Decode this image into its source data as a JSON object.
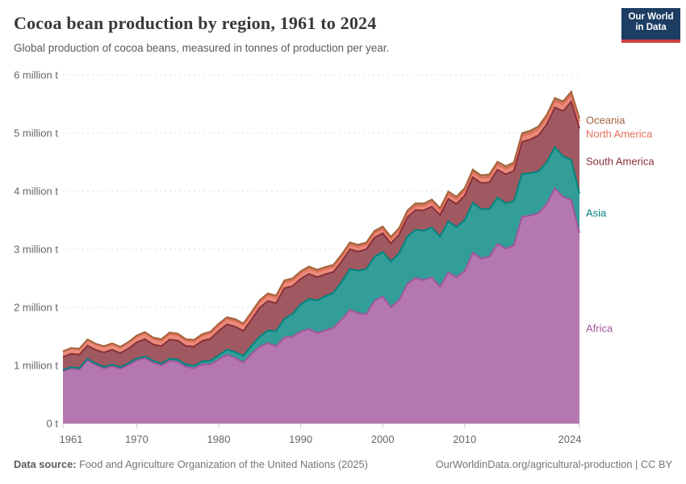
{
  "header": {
    "title": "Cocoa bean production by region, 1961 to 2024",
    "subtitle": "Global production of cocoa beans, measured in tonnes of production per year.",
    "logo": {
      "line1": "Our World",
      "line2": "in Data",
      "bg_color": "#1d3d63",
      "accent_color": "#cf3e3e"
    }
  },
  "chart_data": {
    "type": "area",
    "stacked": true,
    "title": "Cocoa bean production by region, 1961 to 2024",
    "xlabel": "",
    "ylabel": "tonnes of production per year",
    "ylim": [
      0,
      6000000
    ],
    "grid": "dashed-horizontal",
    "legend_position": "right",
    "x": [
      1961,
      1962,
      1963,
      1964,
      1965,
      1966,
      1967,
      1968,
      1969,
      1970,
      1971,
      1972,
      1973,
      1974,
      1975,
      1976,
      1977,
      1978,
      1979,
      1980,
      1981,
      1982,
      1983,
      1984,
      1985,
      1986,
      1987,
      1988,
      1989,
      1990,
      1991,
      1992,
      1993,
      1994,
      1995,
      1996,
      1997,
      1998,
      1999,
      2000,
      2001,
      2002,
      2003,
      2004,
      2005,
      2006,
      2007,
      2008,
      2009,
      2010,
      2011,
      2012,
      2013,
      2014,
      2015,
      2016,
      2017,
      2018,
      2019,
      2020,
      2021,
      2022,
      2023,
      2024
    ],
    "x_ticks": [
      1961,
      1970,
      1980,
      1990,
      2000,
      2010,
      2024
    ],
    "y_ticks": [
      {
        "value": 0,
        "label": "0 t"
      },
      {
        "value": 1000000,
        "label": "1 million t"
      },
      {
        "value": 2000000,
        "label": "2 million t"
      },
      {
        "value": 3000000,
        "label": "3 million t"
      },
      {
        "value": 4000000,
        "label": "4 million t"
      },
      {
        "value": 5000000,
        "label": "5 million t"
      },
      {
        "value": 6000000,
        "label": "6 million t"
      }
    ],
    "series": [
      {
        "name": "Africa",
        "color": "#a2559c",
        "values": [
          900000,
          950000,
          930000,
          1090000,
          1010000,
          950000,
          990000,
          945000,
          1010000,
          1090000,
          1125000,
          1050000,
          1000000,
          1080000,
          1060000,
          975000,
          950000,
          1020000,
          1020000,
          1100000,
          1185000,
          1130000,
          1050000,
          1200000,
          1320000,
          1385000,
          1330000,
          1480000,
          1495000,
          1580000,
          1625000,
          1560000,
          1600000,
          1650000,
          1790000,
          1960000,
          1900000,
          1880000,
          2110000,
          2185000,
          2000000,
          2120000,
          2400000,
          2505000,
          2470000,
          2515000,
          2350000,
          2600000,
          2520000,
          2625000,
          2940000,
          2840000,
          2870000,
          3090000,
          3010000,
          3070000,
          3560000,
          3580000,
          3620000,
          3780000,
          4050000,
          3900000,
          3850000,
          3280000
        ]
      },
      {
        "name": "Asia",
        "color": "#00847e",
        "values": [
          20000,
          20000,
          21000,
          22000,
          22000,
          23000,
          24000,
          25000,
          26000,
          27000,
          28000,
          30000,
          32000,
          35000,
          38000,
          40000,
          45000,
          52000,
          60000,
          75000,
          90000,
          100000,
          115000,
          140000,
          175000,
          215000,
          260000,
          320000,
          390000,
          470000,
          520000,
          560000,
          590000,
          600000,
          650000,
          700000,
          730000,
          780000,
          760000,
          770000,
          790000,
          810000,
          820000,
          830000,
          850000,
          860000,
          870000,
          880000,
          860000,
          880000,
          860000,
          850000,
          820000,
          800000,
          780000,
          760000,
          740000,
          730000,
          720000,
          720000,
          710000,
          700000,
          690000,
          680000
        ]
      },
      {
        "name": "South America",
        "color": "#883039",
        "values": [
          225000,
          230000,
          235000,
          230000,
          235000,
          250000,
          255000,
          240000,
          255000,
          280000,
          300000,
          280000,
          300000,
          330000,
          330000,
          320000,
          330000,
          350000,
          380000,
          420000,
          430000,
          440000,
          430000,
          450000,
          500000,
          510000,
          480000,
          530000,
          480000,
          440000,
          430000,
          400000,
          380000,
          360000,
          350000,
          340000,
          330000,
          340000,
          330000,
          320000,
          310000,
          320000,
          330000,
          340000,
          350000,
          360000,
          370000,
          390000,
          400000,
          420000,
          440000,
          450000,
          460000,
          480000,
          500000,
          520000,
          550000,
          580000,
          620000,
          650000,
          680000,
          780000,
          1000000,
          1120000
        ]
      },
      {
        "name": "North America",
        "color": "#e56e5a",
        "values": [
          90000,
          90000,
          92000,
          93000,
          94000,
          95000,
          96000,
          95000,
          96000,
          98000,
          100000,
          98000,
          95000,
          95000,
          92000,
          90000,
          88000,
          90000,
          92000,
          95000,
          95000,
          96000,
          95000,
          96000,
          97000,
          98000,
          98000,
          99000,
          98000,
          95000,
          92000,
          90000,
          88000,
          85000,
          83000,
          80000,
          78000,
          76000,
          75000,
          74000,
          73000,
          72000,
          72000,
          73000,
          74000,
          75000,
          76000,
          78000,
          80000,
          82000,
          84000,
          86000,
          88000,
          90000,
          92000,
          95000,
          98000,
          100000,
          105000,
          110000,
          112000,
          115000,
          118000,
          120000
        ]
      },
      {
        "name": "Oceania",
        "color": "#a2643c",
        "values": [
          10000,
          10000,
          11000,
          12000,
          13000,
          14000,
          15000,
          16000,
          18000,
          20000,
          22000,
          23000,
          24000,
          26000,
          27000,
          28000,
          28000,
          29000,
          30000,
          30000,
          31000,
          32000,
          32000,
          33000,
          33000,
          34000,
          34000,
          35000,
          36000,
          36000,
          37000,
          38000,
          38000,
          38000,
          39000,
          40000,
          40000,
          41000,
          41000,
          42000,
          42000,
          43000,
          43000,
          44000,
          44000,
          45000,
          45000,
          46000,
          46000,
          47000,
          48000,
          48000,
          49000,
          49000,
          50000,
          50000,
          51000,
          51000,
          52000,
          52000,
          53000,
          53000,
          54000,
          54000
        ]
      }
    ]
  },
  "footer": {
    "source_prefix": "Data source:",
    "source_text": " Food and Agriculture Organization of the United Nations (2025)",
    "license_text": "OurWorldinData.org/agricultural-production | CC BY"
  }
}
